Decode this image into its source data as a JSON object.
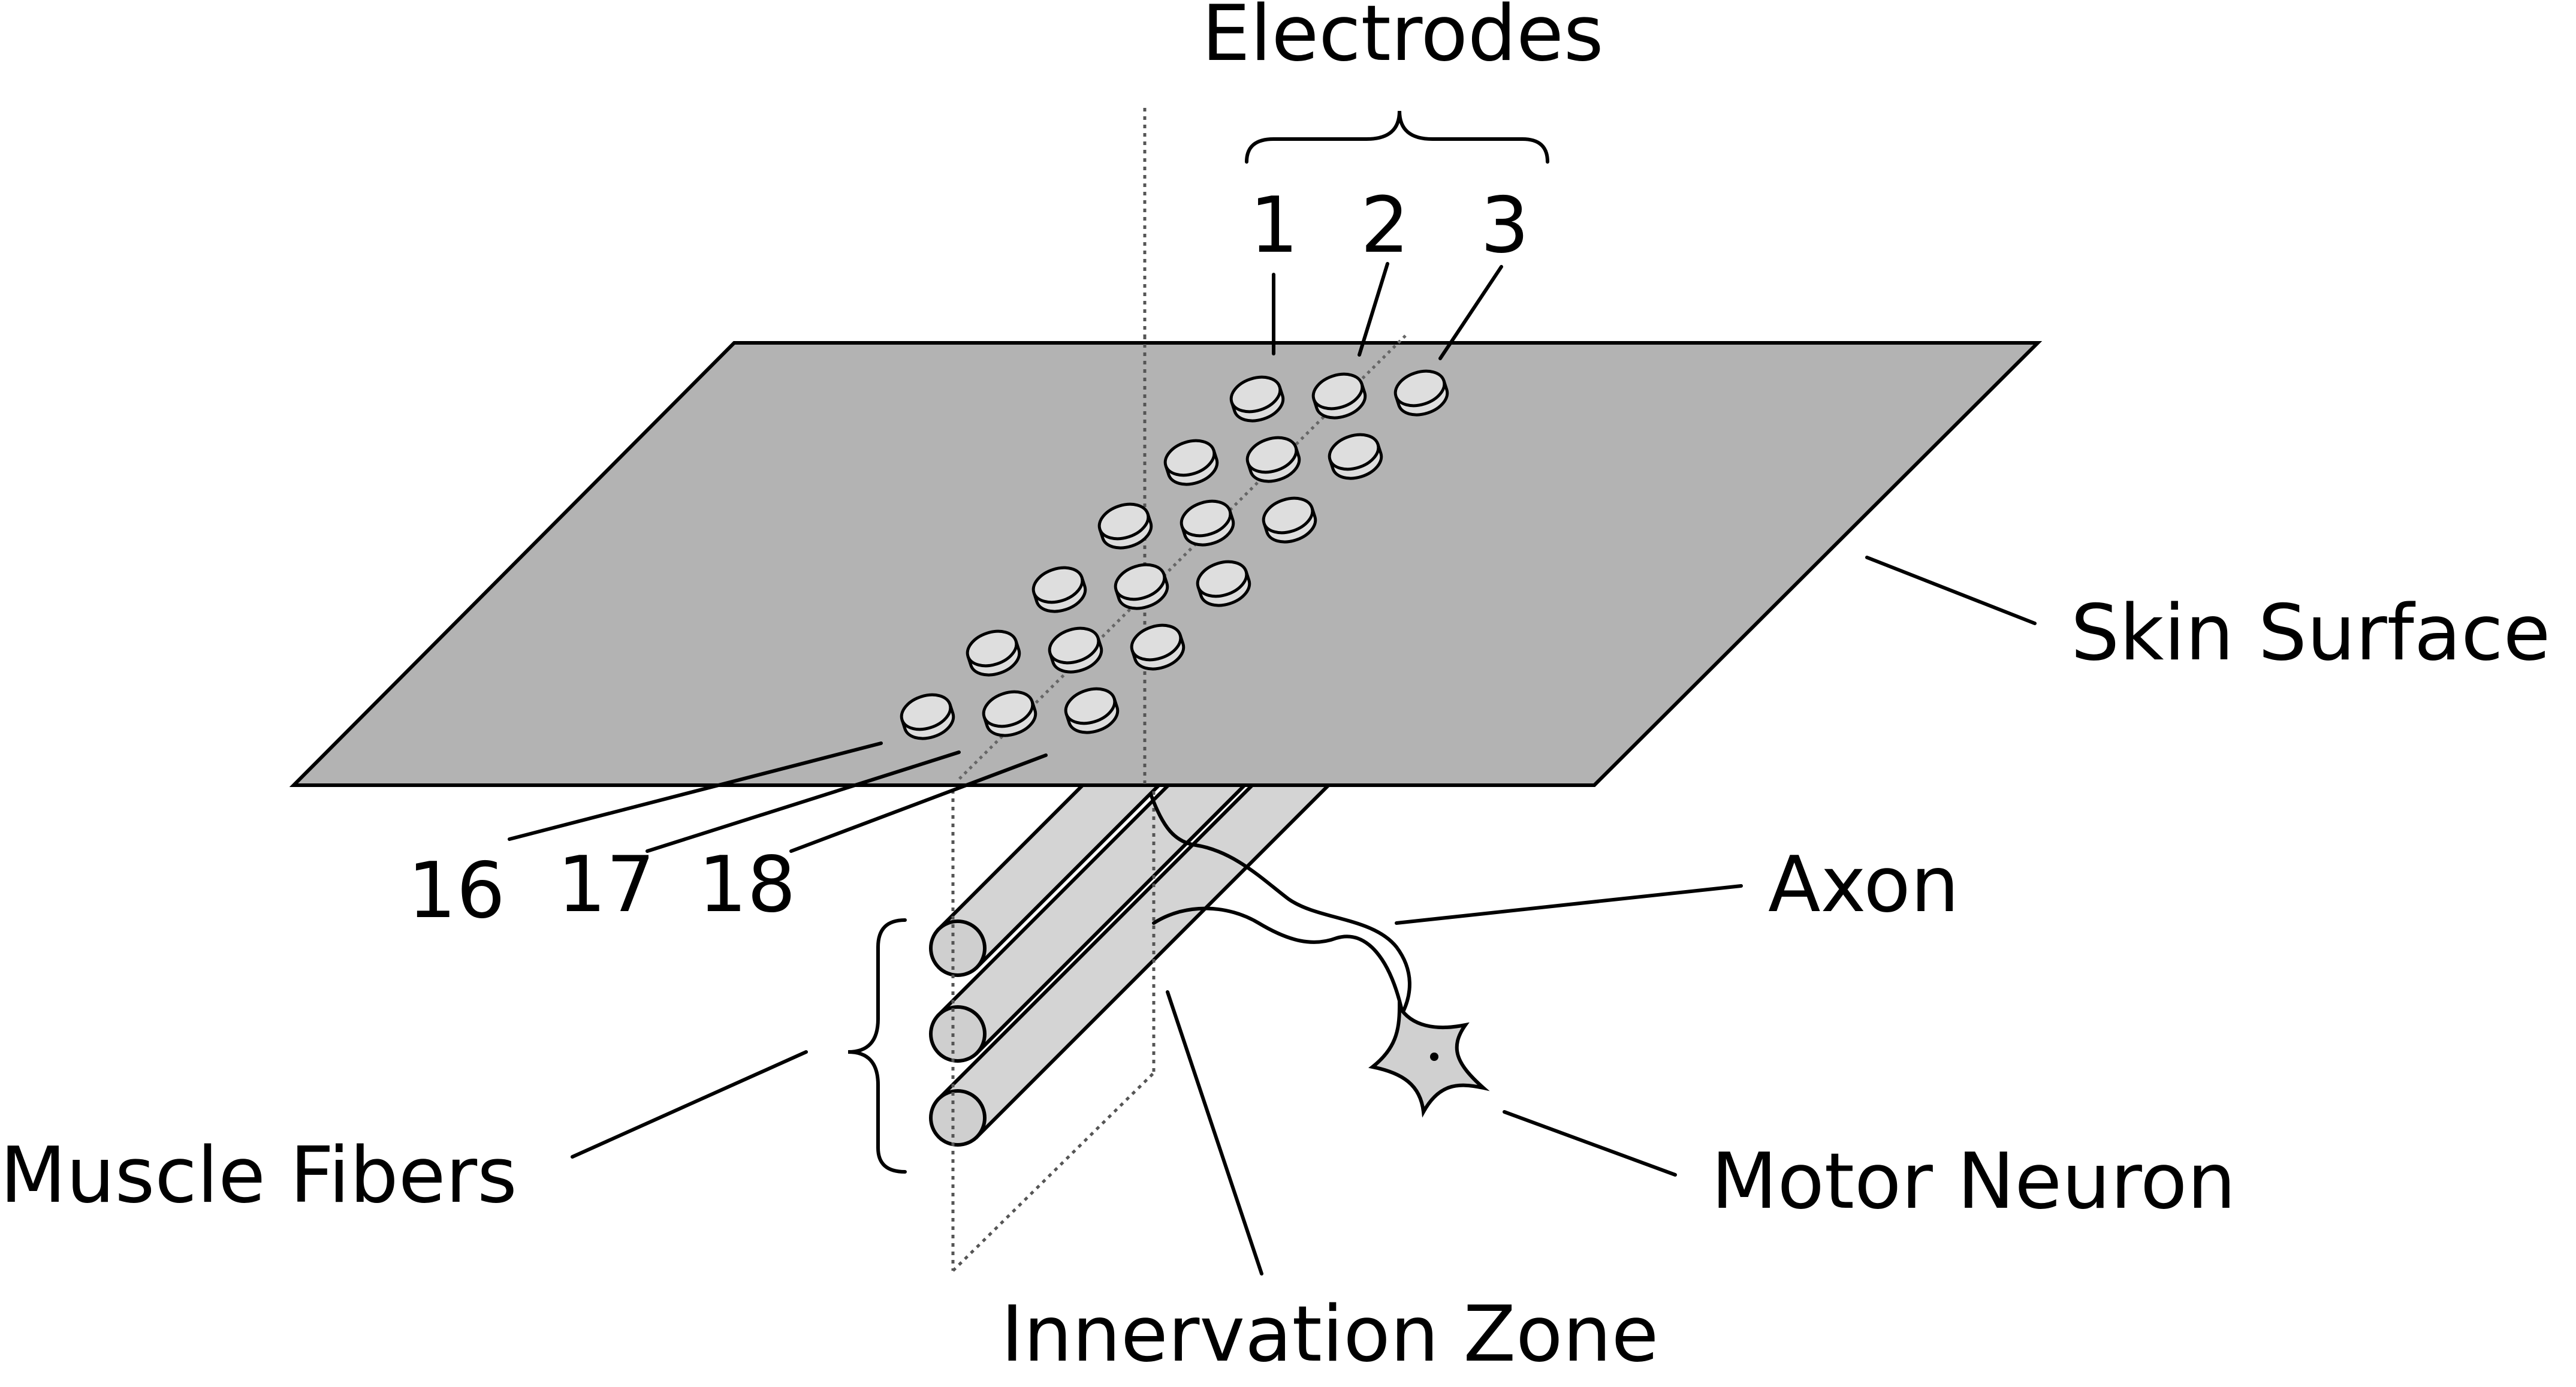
{
  "labels": {
    "electrodes": "Electrodes",
    "electrode_1": "1",
    "electrode_2": "2",
    "electrode_3": "3",
    "electrode_16": "16",
    "electrode_17": "17",
    "electrode_18": "18",
    "skin_surface": "Skin Surface",
    "axon": "Axon",
    "muscle_fibers": "Muscle Fibers",
    "motor_neuron": "Motor Neuron",
    "innervation_zone": "Innervation Zone"
  },
  "colors": {
    "skin": "#b3b3b3",
    "fiber": "#d4d4d4",
    "electrode": "#dedede",
    "neuron": "#d0d0d0",
    "line": "#000000"
  },
  "electrode_grid": {
    "rows": 6,
    "columns": 3
  }
}
